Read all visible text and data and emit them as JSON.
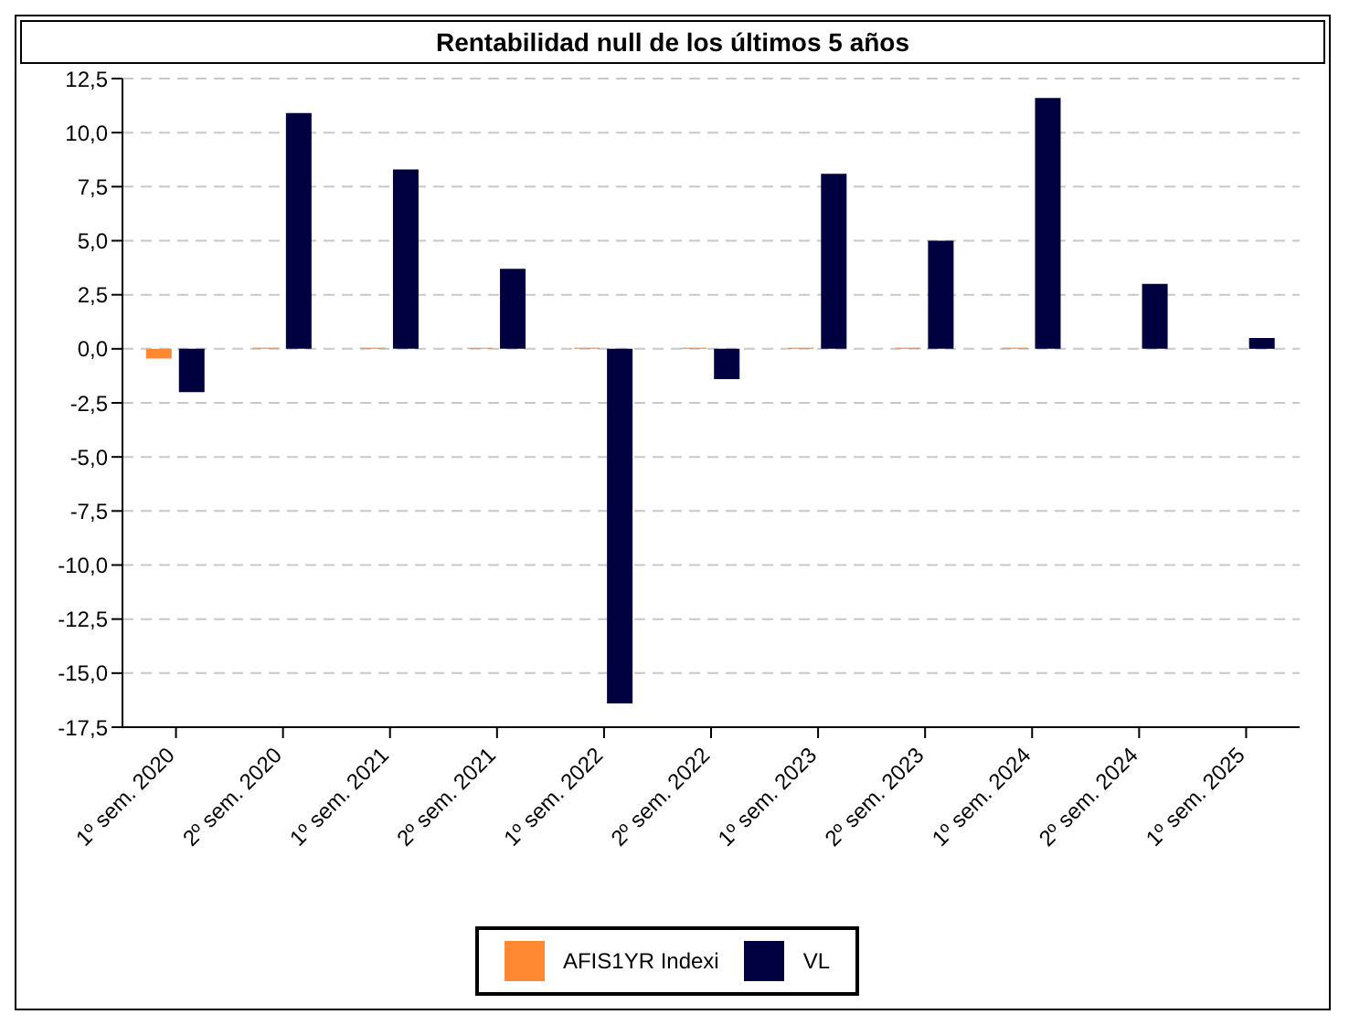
{
  "chart_data": {
    "type": "bar",
    "title": "Rentabilidad null de los últimos 5 años",
    "categories": [
      "1º sem. 2020",
      "2º sem. 2020",
      "1º sem. 2021",
      "2º sem. 2021",
      "1º sem. 2022",
      "2º sem. 2022",
      "1º sem. 2023",
      "2º sem. 2023",
      "1º sem. 2024",
      "2º sem. 2024",
      "1º sem. 2025"
    ],
    "series": [
      {
        "name": "AFIS1YR Indexi",
        "color": "#ff8833",
        "values": [
          -0.45,
          0.05,
          0.05,
          0.05,
          0.05,
          0.05,
          0.05,
          0.05,
          0.05,
          null,
          null
        ]
      },
      {
        "name": "VL",
        "color": "#000040",
        "values": [
          -2.0,
          10.9,
          8.3,
          3.7,
          -16.4,
          -1.4,
          8.1,
          5.0,
          11.6,
          3.0,
          0.5
        ]
      }
    ],
    "ylim": [
      -17.5,
      12.5
    ],
    "yticks": [
      {
        "value": -17.5,
        "label": "-17,5"
      },
      {
        "value": -15,
        "label": "-15,0"
      },
      {
        "value": -12.5,
        "label": "-12,5"
      },
      {
        "value": -10,
        "label": "-10,0"
      },
      {
        "value": -7.5,
        "label": "-7,5"
      },
      {
        "value": -5,
        "label": "-5,0"
      },
      {
        "value": -2.5,
        "label": "-2,5"
      },
      {
        "value": 0,
        "label": "0,0"
      },
      {
        "value": 2.5,
        "label": "2,5"
      },
      {
        "value": 5,
        "label": "5,0"
      },
      {
        "value": 7.5,
        "label": "7,5"
      },
      {
        "value": 10,
        "label": "10,0"
      },
      {
        "value": 12.5,
        "label": "12,5"
      }
    ],
    "grid": "y",
    "legend": "bottom"
  }
}
